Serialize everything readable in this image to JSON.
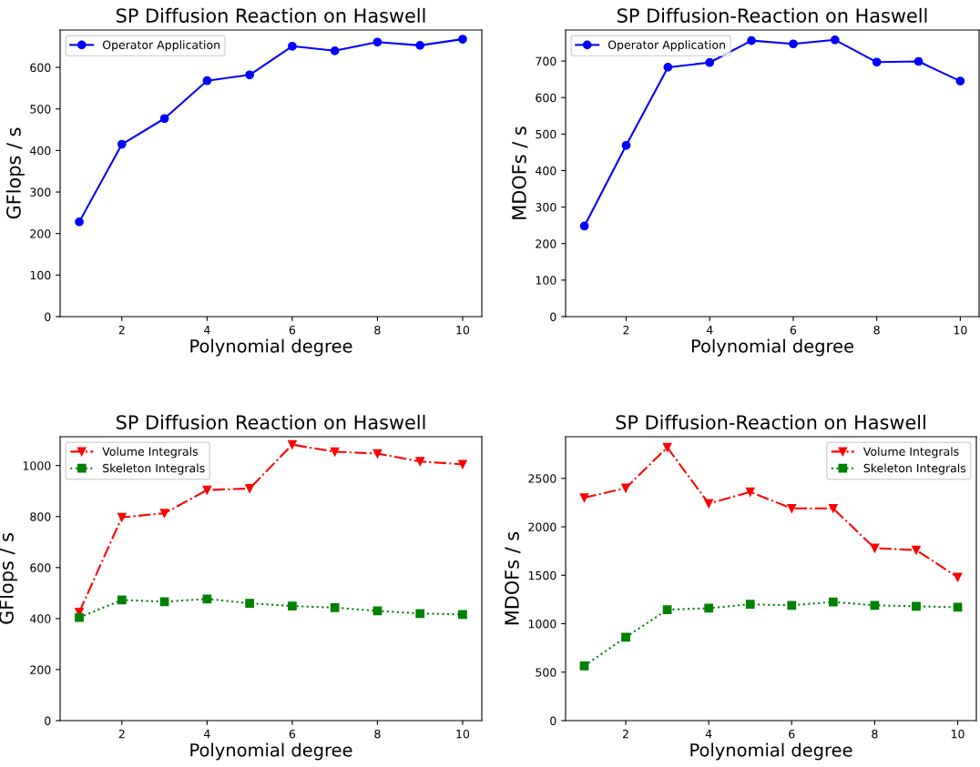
{
  "chart_data": [
    {
      "type": "line",
      "title": "SP Diffusion Reaction on Haswell",
      "xlabel": "Polynomial degree",
      "ylabel": "GFlops / s",
      "x": [
        1,
        2,
        3,
        4,
        5,
        6,
        7,
        8,
        9,
        10
      ],
      "xlim": [
        0.55,
        10.45
      ],
      "xticks": [
        2,
        4,
        6,
        8,
        10
      ],
      "ylim": [
        0,
        690
      ],
      "yticks": [
        0,
        100,
        200,
        300,
        400,
        500,
        600
      ],
      "legend": "top left",
      "grid": false,
      "series": [
        {
          "name": "Operator Application",
          "color": "#0000ff",
          "marker": "circle",
          "line_style": "solid",
          "values": [
            228,
            415,
            477,
            568,
            582,
            651,
            640,
            661,
            653,
            668
          ]
        }
      ]
    },
    {
      "type": "line",
      "title": "SP Diffusion-Reaction on Haswell",
      "xlabel": "Polynomial degree",
      "ylabel": "MDOFs / s",
      "x": [
        1,
        2,
        3,
        4,
        5,
        6,
        7,
        8,
        9,
        10
      ],
      "xlim": [
        0.55,
        10.45
      ],
      "xticks": [
        2,
        4,
        6,
        8,
        10
      ],
      "ylim": [
        0,
        785
      ],
      "yticks": [
        0,
        100,
        200,
        300,
        400,
        500,
        600,
        700
      ],
      "legend": "top left",
      "grid": false,
      "series": [
        {
          "name": "Operator Application",
          "color": "#0000ff",
          "marker": "circle",
          "line_style": "solid",
          "values": [
            248,
            469,
            683,
            696,
            756,
            747,
            758,
            697,
            699,
            645
          ]
        }
      ]
    },
    {
      "type": "line",
      "title": "SP Diffusion Reaction on Haswell",
      "xlabel": "Polynomial degree",
      "ylabel": "GFlops / s",
      "x": [
        1,
        2,
        3,
        4,
        5,
        6,
        7,
        8,
        9,
        10
      ],
      "xlim": [
        0.55,
        10.45
      ],
      "xticks": [
        2,
        4,
        6,
        8,
        10
      ],
      "ylim": [
        0,
        1113
      ],
      "yticks": [
        0,
        200,
        400,
        600,
        800,
        1000
      ],
      "legend": "top left",
      "grid": false,
      "series": [
        {
          "name": "Volume Integrals",
          "color": "#ff0000",
          "marker": "triangle",
          "line_style": "dashdot",
          "values": [
            425,
            797,
            813,
            904,
            910,
            1082,
            1054,
            1047,
            1016,
            1005
          ]
        },
        {
          "name": "Skeleton Integrals",
          "color": "#008000",
          "marker": "square",
          "line_style": "dotted",
          "values": [
            404,
            473,
            466,
            477,
            460,
            449,
            443,
            430,
            420,
            416
          ]
        }
      ]
    },
    {
      "type": "line",
      "title": "SP Diffusion-Reaction on Haswell",
      "xlabel": "Polynomial degree",
      "ylabel": "MDOFs / s",
      "x": [
        1,
        2,
        3,
        4,
        5,
        6,
        7,
        8,
        9,
        10
      ],
      "xlim": [
        0.55,
        10.45
      ],
      "xticks": [
        2,
        4,
        6,
        8,
        10
      ],
      "ylim": [
        0,
        2930
      ],
      "yticks": [
        0,
        500,
        1000,
        1500,
        2000,
        2500
      ],
      "legend": "top right",
      "grid": false,
      "series": [
        {
          "name": "Volume Integrals",
          "color": "#ff0000",
          "marker": "triangle",
          "line_style": "dashdot",
          "values": [
            2300,
            2400,
            2820,
            2240,
            2360,
            2190,
            2190,
            1780,
            1760,
            1480
          ]
        },
        {
          "name": "Skeleton Integrals",
          "color": "#008000",
          "marker": "square",
          "line_style": "dotted",
          "values": [
            565,
            860,
            1145,
            1160,
            1200,
            1190,
            1225,
            1190,
            1180,
            1170
          ]
        }
      ]
    }
  ]
}
